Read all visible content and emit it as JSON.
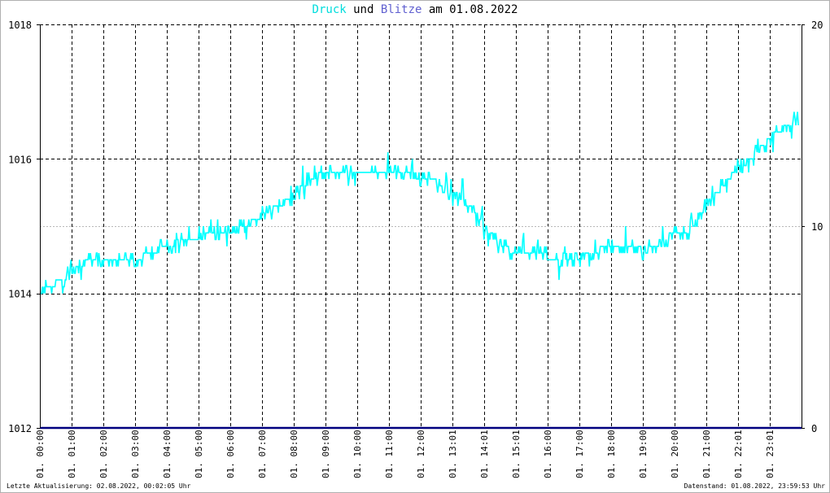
{
  "title": {
    "series1": "Druck",
    "mid": "und",
    "series2": "Blitze",
    "rest": "am 01.08.2022"
  },
  "footer": {
    "left": "Letzte Aktualisierung: 02.08.2022, 00:02:05 Uhr",
    "right": "Datenstand: 01.08.2022, 23:59:53 Uhr"
  },
  "colors": {
    "pressure": "#00ffff",
    "lightning": "#00007f",
    "grid": "#000000",
    "background": "#ffffff"
  },
  "chart_data": {
    "type": "line",
    "title": "Druck und Blitze am 01.08.2022",
    "grid": true,
    "y_left": {
      "range": [
        1012,
        1018
      ],
      "ticks": [
        "1012",
        "1014",
        "1016",
        "1018"
      ]
    },
    "y_right": {
      "range": [
        0,
        20
      ],
      "ticks": [
        "0",
        "10",
        "20"
      ]
    },
    "x": {
      "range_hours": [
        0,
        24
      ],
      "tick_labels": [
        "01. 00:00",
        "01. 01:00",
        "01. 02:00",
        "01. 03:00",
        "01. 04:00",
        "01. 05:00",
        "01. 06:00",
        "01. 07:00",
        "01. 08:00",
        "01. 09:00",
        "01. 10:00",
        "01. 11:00",
        "01. 12:00",
        "01. 13:01",
        "01. 14:01",
        "01. 15:01",
        "01. 16:00",
        "01. 17:00",
        "01. 18:00",
        "01. 19:00",
        "01. 20:00",
        "01. 21:00",
        "01. 22:01",
        "01. 23:01"
      ]
    },
    "series": [
      {
        "name": "Druck",
        "axis": "left",
        "color": "#00ffff",
        "x": [
          0.0,
          0.5,
          1.0,
          1.5,
          2.0,
          2.5,
          3.0,
          3.5,
          4.0,
          4.5,
          5.0,
          5.5,
          6.0,
          6.5,
          7.0,
          7.5,
          8.0,
          8.5,
          9.0,
          9.5,
          10.0,
          10.5,
          11.0,
          11.5,
          12.0,
          12.5,
          13.0,
          13.5,
          14.0,
          14.5,
          15.0,
          15.5,
          16.0,
          16.5,
          17.0,
          17.5,
          18.0,
          18.5,
          19.0,
          19.5,
          20.0,
          20.5,
          21.0,
          21.5,
          22.0,
          22.5,
          23.0,
          23.5,
          23.9
        ],
        "values": [
          1014.0,
          1014.15,
          1014.3,
          1014.5,
          1014.45,
          1014.45,
          1014.5,
          1014.6,
          1014.7,
          1014.8,
          1014.85,
          1014.85,
          1014.9,
          1015.0,
          1015.15,
          1015.3,
          1015.45,
          1015.7,
          1015.85,
          1015.8,
          1015.75,
          1015.8,
          1015.85,
          1015.8,
          1015.7,
          1015.65,
          1015.5,
          1015.3,
          1015.0,
          1014.7,
          1014.6,
          1014.55,
          1014.55,
          1014.5,
          1014.5,
          1014.6,
          1014.75,
          1014.7,
          1014.6,
          1014.75,
          1014.9,
          1014.95,
          1015.3,
          1015.6,
          1015.85,
          1016.05,
          1016.3,
          1016.5,
          1016.6
        ]
      },
      {
        "name": "Blitze",
        "axis": "right",
        "color": "#00007f",
        "x": [
          0,
          24
        ],
        "values": [
          0,
          0
        ]
      }
    ]
  }
}
